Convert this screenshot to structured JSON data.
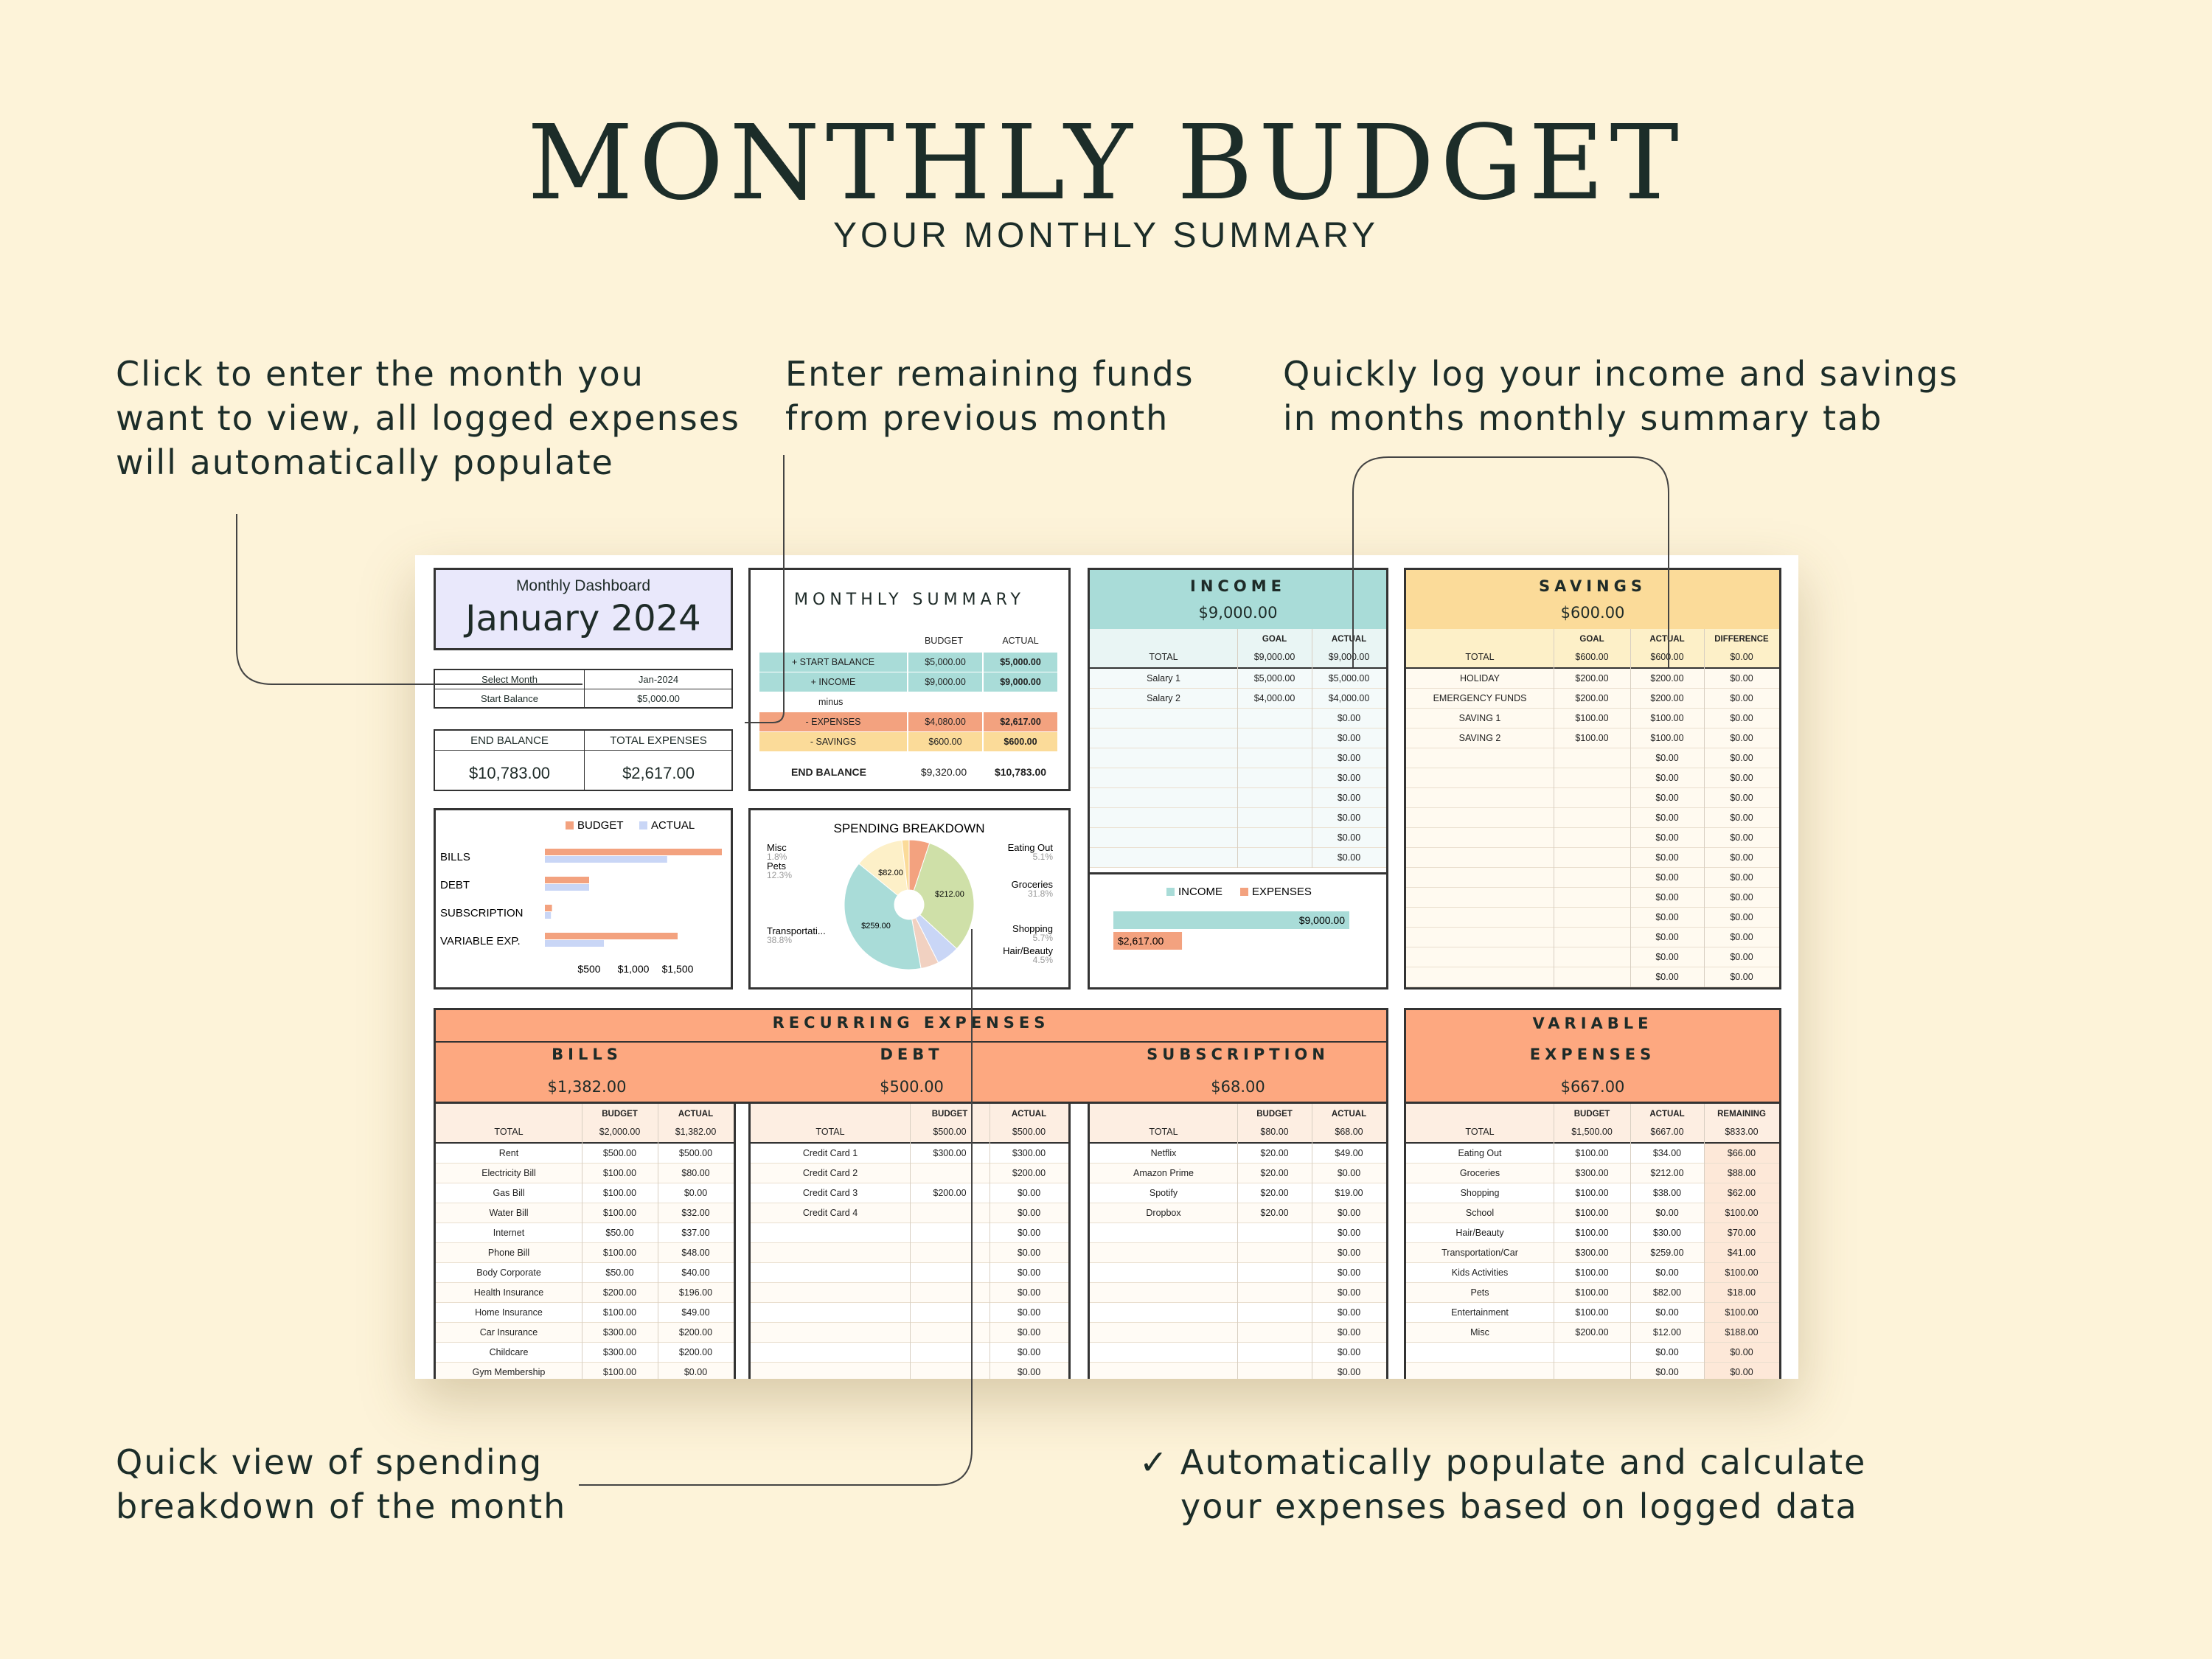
{
  "page": {
    "title": "MONTHLY BUDGET",
    "subtitle": "YOUR MONTHLY SUMMARY"
  },
  "annotations": {
    "select_month": [
      "Click to enter the month you",
      "want to view, all logged expenses",
      "will automatically populate"
    ],
    "remaining_funds": [
      "Enter remaining funds",
      "from previous month"
    ],
    "log_income": [
      "Quickly log your income and savings",
      "in months monthly summary tab"
    ],
    "spending_view": [
      "Quick view of spending",
      "breakdown of the month"
    ],
    "auto_populate": [
      "Automatically populate and calculate",
      "your expenses based on logged data"
    ],
    "check": "✓"
  },
  "dashboard": {
    "label": "Monthly Dashboard",
    "month_title": "January 2024",
    "select_month_label": "Select Month",
    "select_month_value": "Jan-2024",
    "start_balance_label": "Start Balance",
    "start_balance_value": "$5,000.00",
    "end_balance_label": "END BALANCE",
    "end_balance_value": "$10,783.00",
    "total_expenses_label": "TOTAL EXPENSES",
    "total_expenses_value": "$2,617.00"
  },
  "summary": {
    "title": "MONTHLY  SUMMARY",
    "col_budget": "BUDGET",
    "col_actual": "ACTUAL",
    "rows": [
      {
        "label": "+ START BALANCE",
        "budget": "$5,000.00",
        "actual": "$5,000.00",
        "color": "#a9dcd8"
      },
      {
        "label": "+ INCOME",
        "budget": "$9,000.00",
        "actual": "$9,000.00",
        "color": "#a9dcd8"
      },
      {
        "label": "minus",
        "budget": "",
        "actual": "",
        "color": "#ffffff"
      },
      {
        "label": "- EXPENSES",
        "budget": "$4,080.00",
        "actual": "$2,617.00",
        "color": "#f3a27f"
      },
      {
        "label": "- SAVINGS",
        "budget": "$600.00",
        "actual": "$600.00",
        "color": "#fbdb99"
      }
    ],
    "end_label": "END BALANCE",
    "end_budget": "$9,320.00",
    "end_actual": "$10,783.00"
  },
  "bar_chart": {
    "legend_budget": "BUDGET",
    "legend_actual": "ACTUAL",
    "budget_color": "#f3a27f",
    "actual_color": "#c9d6f6",
    "categories": [
      "BILLS",
      "DEBT",
      "SUBSCRIPTION",
      "VARIABLE EXP."
    ],
    "budget": [
      2000,
      500,
      80,
      1500
    ],
    "actual": [
      1382,
      500,
      68,
      667
    ],
    "ticks": [
      "$500",
      "$1,000",
      "$1,500"
    ],
    "max": 2000
  },
  "pie_chart": {
    "title": "SPENDING BREAKDOWN",
    "slices": [
      {
        "name": "Eating Out",
        "pct": "5.1%",
        "value": 34,
        "color": "#f3a27f"
      },
      {
        "name": "Groceries",
        "pct": "31.8%",
        "value": 212,
        "color": "#cfe0a8"
      },
      {
        "name": "Shopping",
        "pct": "5.7%",
        "value": 38,
        "color": "#c9d6f6"
      },
      {
        "name": "Hair/Beauty",
        "pct": "4.5%",
        "value": 30,
        "color": "#f1d1c1"
      },
      {
        "name": "Transportati...",
        "pct": "38.8%",
        "value": 259,
        "color": "#a9dcd8"
      },
      {
        "name": "Pets",
        "pct": "12.3%",
        "value": 82,
        "color": "#fdf0c8"
      },
      {
        "name": "Misc",
        "pct": "1.8%",
        "value": 12,
        "color": "#fbdb99"
      }
    ],
    "value_labels": [
      "$82.00",
      "$212.00",
      "$259.00"
    ]
  },
  "income": {
    "title": "INCOME",
    "total_value": "$9,000.00",
    "col_goal": "GOAL",
    "col_actual": "ACTUAL",
    "total_label": "TOTAL",
    "total_goal": "$9,000.00",
    "total_actual": "$9,000.00",
    "rows": [
      [
        "Salary 1",
        "$5,000.00",
        "$5,000.00"
      ],
      [
        "Salary 2",
        "$4,000.00",
        "$4,000.00"
      ],
      [
        "",
        "",
        "$0.00"
      ],
      [
        "",
        "",
        "$0.00"
      ],
      [
        "",
        "",
        "$0.00"
      ],
      [
        "",
        "",
        "$0.00"
      ],
      [
        "",
        "",
        "$0.00"
      ],
      [
        "",
        "",
        "$0.00"
      ],
      [
        "",
        "",
        "$0.00"
      ],
      [
        "",
        "",
        "$0.00"
      ]
    ],
    "legend_income": "INCOME",
    "legend_expenses": "EXPENSES",
    "bar_income": "$9,000.00",
    "bar_expenses": "$2,617.00",
    "income_value": 9000,
    "expenses_value": 2617,
    "income_color": "#a9dcd8",
    "expenses_color": "#f3a27f"
  },
  "savings": {
    "title": "SAVINGS",
    "total_value": "$600.00",
    "col_goal": "GOAL",
    "col_actual": "ACTUAL",
    "col_diff": "DIFFERENCE",
    "total_label": "TOTAL",
    "total_goal": "$600.00",
    "total_actual": "$600.00",
    "total_diff": "$0.00",
    "rows": [
      [
        "HOLIDAY",
        "$200.00",
        "$200.00",
        "$0.00"
      ],
      [
        "EMERGENCY FUNDS",
        "$200.00",
        "$200.00",
        "$0.00"
      ],
      [
        "SAVING 1",
        "$100.00",
        "$100.00",
        "$0.00"
      ],
      [
        "SAVING 2",
        "$100.00",
        "$100.00",
        "$0.00"
      ],
      [
        "",
        "",
        "$0.00",
        "$0.00"
      ],
      [
        "",
        "",
        "$0.00",
        "$0.00"
      ],
      [
        "",
        "",
        "$0.00",
        "$0.00"
      ],
      [
        "",
        "",
        "$0.00",
        "$0.00"
      ],
      [
        "",
        "",
        "$0.00",
        "$0.00"
      ],
      [
        "",
        "",
        "$0.00",
        "$0.00"
      ],
      [
        "",
        "",
        "$0.00",
        "$0.00"
      ],
      [
        "",
        "",
        "$0.00",
        "$0.00"
      ],
      [
        "",
        "",
        "$0.00",
        "$0.00"
      ],
      [
        "",
        "",
        "$0.00",
        "$0.00"
      ],
      [
        "",
        "",
        "$0.00",
        "$0.00"
      ],
      [
        "",
        "",
        "$0.00",
        "$0.00"
      ]
    ]
  },
  "recurring": {
    "title": "RECURRING EXPENSES",
    "bills": {
      "title": "BILLS",
      "total_value": "$1,382.00",
      "col_budget": "BUDGET",
      "col_actual": "ACTUAL",
      "total_label": "TOTAL",
      "total_budget": "$2,000.00",
      "total_actual": "$1,382.00",
      "rows": [
        [
          "Rent",
          "$500.00",
          "$500.00"
        ],
        [
          "Electricity Bill",
          "$100.00",
          "$80.00"
        ],
        [
          "Gas Bill",
          "$100.00",
          "$0.00"
        ],
        [
          "Water Bill",
          "$100.00",
          "$32.00"
        ],
        [
          "Internet",
          "$50.00",
          "$37.00"
        ],
        [
          "Phone Bill",
          "$100.00",
          "$48.00"
        ],
        [
          "Body Corporate",
          "$50.00",
          "$40.00"
        ],
        [
          "Health Insurance",
          "$200.00",
          "$196.00"
        ],
        [
          "Home Insurance",
          "$100.00",
          "$49.00"
        ],
        [
          "Car Insurance",
          "$300.00",
          "$200.00"
        ],
        [
          "Childcare",
          "$300.00",
          "$200.00"
        ],
        [
          "Gym Membership",
          "$100.00",
          "$0.00"
        ]
      ]
    },
    "debt": {
      "title": "DEBT",
      "total_value": "$500.00",
      "col_budget": "BUDGET",
      "col_actual": "ACTUAL",
      "total_label": "TOTAL",
      "total_budget": "$500.00",
      "total_actual": "$500.00",
      "rows": [
        [
          "Credit Card 1",
          "$300.00",
          "$300.00"
        ],
        [
          "Credit Card 2",
          "",
          "$200.00"
        ],
        [
          "Credit Card 3",
          "$200.00",
          "$0.00"
        ],
        [
          "Credit Card 4",
          "",
          "$0.00"
        ],
        [
          "",
          "",
          "$0.00"
        ],
        [
          "",
          "",
          "$0.00"
        ],
        [
          "",
          "",
          "$0.00"
        ],
        [
          "",
          "",
          "$0.00"
        ],
        [
          "",
          "",
          "$0.00"
        ],
        [
          "",
          "",
          "$0.00"
        ],
        [
          "",
          "",
          "$0.00"
        ],
        [
          "",
          "",
          "$0.00"
        ]
      ]
    },
    "subscription": {
      "title": "SUBSCRIPTION",
      "total_value": "$68.00",
      "col_budget": "BUDGET",
      "col_actual": "ACTUAL",
      "total_label": "TOTAL",
      "total_budget": "$80.00",
      "total_actual": "$68.00",
      "rows": [
        [
          "Netflix",
          "$20.00",
          "$49.00"
        ],
        [
          "Amazon Prime",
          "$20.00",
          "$0.00"
        ],
        [
          "Spotify",
          "$20.00",
          "$19.00"
        ],
        [
          "Dropbox",
          "$20.00",
          "$0.00"
        ],
        [
          "",
          "",
          "$0.00"
        ],
        [
          "",
          "",
          "$0.00"
        ],
        [
          "",
          "",
          "$0.00"
        ],
        [
          "",
          "",
          "$0.00"
        ],
        [
          "",
          "",
          "$0.00"
        ],
        [
          "",
          "",
          "$0.00"
        ],
        [
          "",
          "",
          "$0.00"
        ],
        [
          "",
          "",
          "$0.00"
        ]
      ]
    }
  },
  "variable": {
    "title_line1": "VARIABLE",
    "title_line2": "EXPENSES",
    "total_value": "$667.00",
    "col_budget": "BUDGET",
    "col_actual": "ACTUAL",
    "col_remaining": "REMAINING",
    "total_label": "TOTAL",
    "total_budget": "$1,500.00",
    "total_actual": "$667.00",
    "total_remaining": "$833.00",
    "rows": [
      [
        "Eating Out",
        "$100.00",
        "$34.00",
        "$66.00"
      ],
      [
        "Groceries",
        "$300.00",
        "$212.00",
        "$88.00"
      ],
      [
        "Shopping",
        "$100.00",
        "$38.00",
        "$62.00"
      ],
      [
        "School",
        "$100.00",
        "$0.00",
        "$100.00"
      ],
      [
        "Hair/Beauty",
        "$100.00",
        "$30.00",
        "$70.00"
      ],
      [
        "Transportation/Car",
        "$300.00",
        "$259.00",
        "$41.00"
      ],
      [
        "Kids Activities",
        "$100.00",
        "$0.00",
        "$100.00"
      ],
      [
        "Pets",
        "$100.00",
        "$82.00",
        "$18.00"
      ],
      [
        "Entertainment",
        "$100.00",
        "$0.00",
        "$100.00"
      ],
      [
        "Misc",
        "$200.00",
        "$12.00",
        "$188.00"
      ],
      [
        "",
        "",
        "$0.00",
        "$0.00"
      ],
      [
        "",
        "",
        "$0.00",
        "$0.00"
      ]
    ]
  },
  "colors": {
    "background": "#fdf3d9",
    "teal": "#a9dcd8",
    "teal_light": "#e9f5f4",
    "yellow": "#fbdb99",
    "yellow_light": "#fdf0c8",
    "orange": "#fda880",
    "orange_light": "#fdeee2",
    "lavender": "#e9e8fb"
  }
}
